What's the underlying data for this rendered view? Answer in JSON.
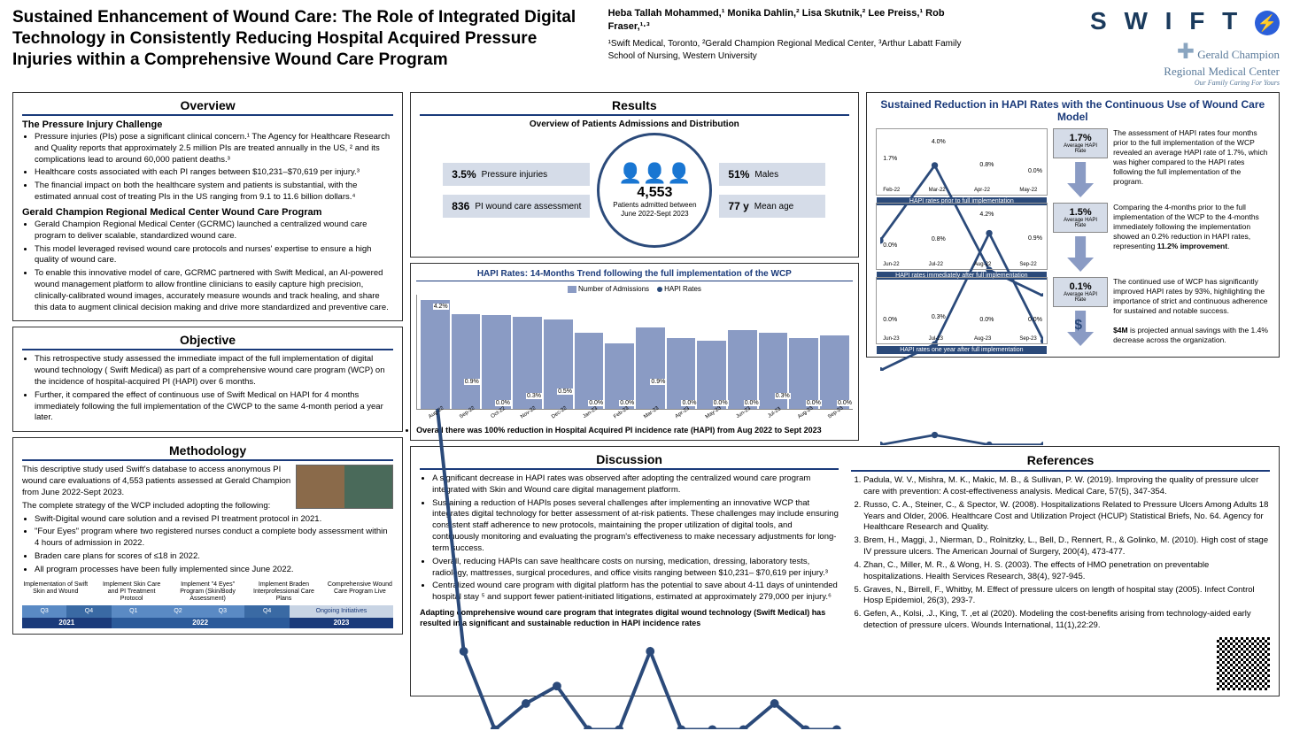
{
  "title": "Sustained Enhancement of Wound Care: The Role of Integrated Digital Technology in Consistently Reducing Hospital Acquired Pressure Injuries within a Comprehensive Wound Care Program",
  "authors": "Heba Tallah Mohammed,¹ Monika Dahlin,² Lisa Skutnik,² Lee Preiss,¹ Rob Fraser,¹·³",
  "affiliations": "¹Swift Medical, Toronto, ²Gerald Champion Regional Medical Center, ³Arthur Labatt Family School of Nursing, Western University",
  "logos": {
    "swift": "S W I F T",
    "gc1": "Gerald Champion",
    "gc2": "Regional Medical Center",
    "gc3": "Our Family Caring For Yours"
  },
  "overview": {
    "title": "Overview",
    "h1": "The Pressure Injury Challenge",
    "b1": [
      "Pressure injuries (PIs) pose a significant clinical concern.¹ The Agency for Healthcare Research and Quality reports that approximately 2.5 million PIs are treated annually in the US, ² and its complications lead to around 60,000 patient deaths.³",
      "Healthcare costs associated with each PI ranges between $10,231–$70,619 per injury.³",
      "The financial impact on both the healthcare system and patients is substantial, with the estimated annual cost of treating PIs in the US ranging from 9.1 to 11.6 billion dollars.⁴"
    ],
    "h2": "Gerald Champion Regional Medical Center Wound Care Program",
    "b2": [
      "Gerald Champion Regional Medical Center (GCRMC) launched a centralized wound care program to deliver scalable, standardized wound care.",
      "This model leveraged revised wound care protocols and nurses' expertise to ensure a high quality of wound care.",
      "To enable this innovative model of care, GCRMC partnered with Swift Medical, an AI-powered wound management platform to allow frontline clinicians to easily capture high precision, clinically-calibrated wound images, accurately measure wounds and track healing, and share this data to augment clinical decision making and drive more standardized and preventive care."
    ]
  },
  "objective": {
    "title": "Objective",
    "items": [
      "This retrospective study assessed the immediate impact of the full implementation of digital wound technology ( Swift Medical) as part of a comprehensive wound care program (WCP) on the incidence of hospital-acquired PI (HAPI) over 6 months.",
      "Further, it compared the effect of continuous use of Swift Medical on HAPI for 4 months immediately following the full implementation of the CWCP to the same 4-month period a year later."
    ]
  },
  "methodology": {
    "title": "Methodology",
    "intro": "This descriptive study used Swift's database to access anonymous PI wound care evaluations of 4,553 patients assessed at Gerald Champion from June 2022-Sept 2023.",
    "strategy": "The complete strategy of the WCP included adopting the following:",
    "items": [
      "Swift-Digital wound care solution and a revised PI treatment protocol in 2021.",
      "\"Four Eyes\" program where two registered nurses conduct a complete body assessment within 4 hours of admission in 2022.",
      "Braden care plans for scores of ≤18 in 2022.",
      "All program processes have been fully implemented since June 2022."
    ],
    "timeline": {
      "items": [
        "Implementation of Swift Skin and Wound",
        "Implement Skin Care and PI Treatment Protocol",
        "Implement \"4 Eyes\" Program (Skin/Body Assessment)",
        "Implement Braden Interprofessional Care Plans",
        "Comprehensive Wound Care Program Live"
      ],
      "quarters": [
        "Q3",
        "Q4",
        "Q1",
        "Q2",
        "Q3",
        "Q4",
        "Ongoing Initiatives"
      ],
      "q_colors": [
        "#5a8ac4",
        "#3a6aa4",
        "#5a8ac4",
        "#5a8ac4",
        "#5a8ac4",
        "#3a6aa4",
        "#c8d4e4"
      ],
      "q_widths": [
        12,
        12,
        12,
        12,
        12,
        12,
        28
      ],
      "years": [
        "2021",
        "2022",
        "2023"
      ],
      "y_colors": [
        "#1a3a7a",
        "#2b5a9a",
        "#1a3a7a"
      ],
      "y_widths": [
        24,
        48,
        28
      ]
    }
  },
  "results": {
    "title": "Results",
    "subtitle": "Overview of Patients Admissions and Distribution",
    "stats": {
      "pi_pct": "3.5%",
      "pi_lbl": "Pressure injuries",
      "males_pct": "51%",
      "males_lbl": "Males",
      "assess_n": "836",
      "assess_lbl": "PI wound care assessment",
      "age_n": "77 y",
      "age_lbl": "Mean age",
      "center_n": "4,553",
      "center_lbl": "Patients admitted between",
      "center_dates": "June 2022-Sept 2023"
    },
    "trend": {
      "title": "HAPI Rates: 14-Months Trend following the full implementation of the WCP",
      "legend1": "Number of Admissions",
      "legend2": "HAPI Rates",
      "months": [
        "Aug-22",
        "Sep-22",
        "Oct-22",
        "Nov-22",
        "Dec-22",
        "Jan-23",
        "Feb-23",
        "Mar-23",
        "Apr-23",
        "May-23",
        "Jun-23",
        "Jul-23",
        "Aug-23",
        "Sep-23"
      ],
      "admissions": [
        400,
        350,
        345,
        340,
        330,
        280,
        240,
        300,
        260,
        250,
        290,
        280,
        260,
        270
      ],
      "hapi": [
        "4.2%",
        "0.9%",
        "0.0%",
        "0.3%",
        "0.5%",
        "0.0%",
        "0.0%",
        "0.9%",
        "0.0%",
        "0.0%",
        "0.0%",
        "0.3%",
        "0.0%",
        "0.0%"
      ],
      "hapi_v": [
        4.2,
        0.9,
        0.0,
        0.3,
        0.5,
        0.0,
        0.0,
        0.9,
        0.0,
        0.0,
        0.0,
        0.3,
        0.0,
        0.0
      ],
      "max_adm": 420,
      "bullet": "Overall there was 100% reduction in Hospital Acquired PI incidence rate (HAPI) from Aug 2022 to Sept 2023"
    }
  },
  "sustained": {
    "title": "Sustained Reduction in HAPI Rates with the Continuous Use of Wound Care Model",
    "rows": [
      {
        "rate": "1.7%",
        "rate_lbl": "Average HAPI Rate",
        "chart_lbl": "HAPI rates prior to full implementation",
        "months": [
          "Feb-22",
          "Mar-22",
          "Apr-22",
          "May-22"
        ],
        "vals": [
          1.7,
          4.0,
          0.8,
          0.0
        ],
        "max": 5,
        "text": "The assessment of HAPI rates four months prior to the full implementation of the WCP revealed an average HAPI rate of 1.7%, which was higher compared to the HAPI rates following the full implementation of the program."
      },
      {
        "rate": "1.5%",
        "rate_lbl": "Average HAPI Rate",
        "chart_lbl": "HAPI rates immediately after full implementation",
        "months": [
          "Jun-22",
          "Jul-22",
          "Aug-22",
          "Sep-22"
        ],
        "vals": [
          0.0,
          0.8,
          4.2,
          0.9
        ],
        "max": 5,
        "text": "Comparing the 4-months prior to the full implementation of the WCP to the 4-months immediately following the implementation showed an 0.2% reduction in HAPI rates, representing 11.2% improvement."
      },
      {
        "rate": "0.1%",
        "rate_lbl": "Average HAPI Rate",
        "chart_lbl": "HAPI rates one year after full implementation",
        "months": [
          "Jun-23",
          "Jul-23",
          "Aug-23",
          "Sep-23"
        ],
        "vals": [
          0.0,
          0.3,
          0.0,
          0.0
        ],
        "max": 5,
        "text": "The continued use of WCP has significantly improved HAPI rates by 93%, highlighting the importance of strict and continuous adherence for sustained and notable success.",
        "savings": "$4M is projected annual savings with the 1.4% decrease across the organization."
      }
    ]
  },
  "discussion": {
    "title": "Discussion",
    "items": [
      "A significant decrease in HAPI rates was observed after adopting the centralized wound care program integrated with Skin and Wound care digital management platform.",
      "Sustaining a reduction of HAPIs poses several challenges after implementing an innovative WCP that integrates digital technology for better assessment of at-risk patients. These challenges may include ensuring consistent staff adherence to new protocols, maintaining the proper utilization of digital tools, and continuously monitoring and evaluating the program's effectiveness to make necessary adjustments for long-term success.",
      "Overall, reducing HAPIs can save healthcare costs on nursing, medication, dressing, laboratory tests, radiology, mattresses, surgical procedures, and office visits ranging between $10,231– $70,619 per injury.³",
      "Centralized wound care program with digital platform has the potential to save about 4-11 days of unintended hospital stay ⁵ and support fewer patient-initiated litigations, estimated at approximately 279,000 per injury.⁶"
    ],
    "conclusion": "Adapting comprehensive wound care program that integrates digital wound technology (Swift Medical) has resulted in a significant and sustainable reduction in HAPI incidence rates"
  },
  "references": {
    "title": "References",
    "items": [
      "Padula, W. V., Mishra, M. K., Makic, M. B., & Sullivan, P. W. (2019). Improving the quality of pressure ulcer care with prevention: A cost-effectiveness analysis. Medical Care, 57(5), 347-354.",
      "Russo, C. A., Steiner, C., & Spector, W. (2008). Hospitalizations Related to Pressure Ulcers Among Adults 18 Years and Older, 2006. Healthcare Cost and Utilization Project (HCUP) Statistical Briefs, No. 64. Agency for Healthcare Research and Quality.",
      "Brem, H., Maggi, J., Nierman, D., Rolnitzky, L., Bell, D., Rennert, R., & Golinko, M. (2010). High cost of stage IV pressure ulcers. The American Journal of Surgery, 200(4), 473-477.",
      "Zhan, C., Miller, M. R., & Wong, H. S. (2003). The effects of HMO penetration on preventable hospitalizations. Health Services Research, 38(4), 927-945.",
      "Graves, N., Birrell, F., Whitby, M. Effect of pressure ulcers on length of hospital stay (2005). Infect Control Hosp Epidemiol, 26(3), 293-7.",
      "Gefen, A., Kolsi, .J., King, T. ,et al (2020). Modeling the cost-benefits arising from technology-aided early detection of pressure ulcers. Wounds International, 11(1),22:29."
    ]
  }
}
